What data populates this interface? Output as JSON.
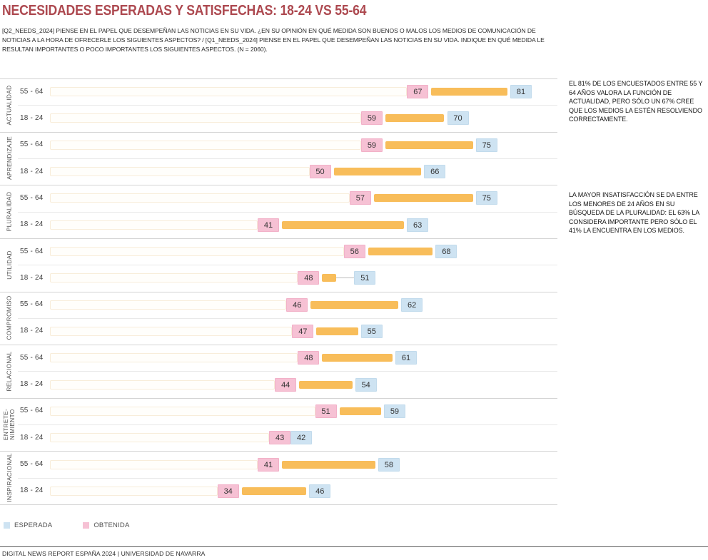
{
  "title": "NECESIDADES ESPERADAS Y SATISFECHAS: 18-24 VS 55-64",
  "question": "[Q2_NEEDS_2024] PIENSE EN EL PAPEL QUE DESEMPEÑAN LAS NOTICIAS EN SU VIDA. ¿EN SU OPINIÓN EN QUÉ MEDIDA SON BUENOS O MALOS LOS MEDIOS DE COMUNICACIÓN DE NOTICIAS A LA HORA DE OFRECERLE LOS SIGUIENTES ASPECTOS? / [Q1_NEEDS_2024] PIENSE EN EL PAPEL QUE DESEMPEÑAN LAS NOTICIAS EN SU VIDA. INDIQUE EN QUÉ MEDIDA LE RESULTAN IMPORTANTES O POCO IMPORTANTES LOS SIGUIENTES ASPECTOS. (N = 2060).",
  "chart_data": {
    "type": "bar",
    "subtype": "dumbbell-gap",
    "xlim": [
      0,
      100
    ],
    "row_labels": [
      "55 - 64",
      "18 - 24"
    ],
    "colors": {
      "obtenida_fill": "#f6c1d4",
      "obtenida_border": "#f2b1c8",
      "esperada_fill": "#cee3f2",
      "esperada_border": "#c2dbec",
      "gap_bar": "#f8bd5a",
      "title_red": "#ad4950"
    },
    "series_legend": [
      {
        "name": "ESPERADA",
        "color": "#cee3f2"
      },
      {
        "name": "OBTENIDA",
        "color": "#f6c1d4"
      }
    ],
    "categories": [
      {
        "label": "ACTUALIDAD",
        "label_lines": [
          "ACTUALIDAD"
        ],
        "rows": [
          {
            "group": "55 - 64",
            "obtenida": 67,
            "esperada": 81
          },
          {
            "group": "18 - 24",
            "obtenida": 59,
            "esperada": 70
          }
        ]
      },
      {
        "label": "APRENDIZAJE",
        "label_lines": [
          "APRENDIZAJE"
        ],
        "rows": [
          {
            "group": "55 - 64",
            "obtenida": 59,
            "esperada": 75
          },
          {
            "group": "18 - 24",
            "obtenida": 50,
            "esperada": 66
          }
        ]
      },
      {
        "label": "PLURALIDAD",
        "label_lines": [
          "PLURALIDAD"
        ],
        "rows": [
          {
            "group": "55 - 64",
            "obtenida": 57,
            "esperada": 75
          },
          {
            "group": "18 - 24",
            "obtenida": 41,
            "esperada": 63
          }
        ]
      },
      {
        "label": "UTILIDAD",
        "label_lines": [
          "UTILIDAD"
        ],
        "rows": [
          {
            "group": "55 - 64",
            "obtenida": 56,
            "esperada": 68
          },
          {
            "group": "18 - 24",
            "obtenida": 48,
            "esperada": 51
          }
        ]
      },
      {
        "label": "COMPROMISO",
        "label_lines": [
          "COMPROMISO"
        ],
        "rows": [
          {
            "group": "55 - 64",
            "obtenida": 46,
            "esperada": 62
          },
          {
            "group": "18 - 24",
            "obtenida": 47,
            "esperada": 55
          }
        ]
      },
      {
        "label": "RELACIONAL",
        "label_lines": [
          "RELACIONAL"
        ],
        "rows": [
          {
            "group": "55 - 64",
            "obtenida": 48,
            "esperada": 61
          },
          {
            "group": "18 - 24",
            "obtenida": 44,
            "esperada": 54
          }
        ]
      },
      {
        "label": "ENTRETENIMIENTO",
        "label_lines": [
          "ENTRETE-",
          "NIMIENTO"
        ],
        "rows": [
          {
            "group": "55 - 64",
            "obtenida": 51,
            "esperada": 59
          },
          {
            "group": "18 - 24",
            "obtenida": 43,
            "esperada": 42
          }
        ]
      },
      {
        "label": "INSPIRACIONAL",
        "label_lines": [
          "INSPIRACIONAL"
        ],
        "rows": [
          {
            "group": "55 - 64",
            "obtenida": 41,
            "esperada": 58
          },
          {
            "group": "18 - 24",
            "obtenida": 34,
            "esperada": 46
          }
        ]
      }
    ]
  },
  "annotations": [
    {
      "text": "EL 81% DE LOS ENCUESTADOS ENTRE 55 Y 64 AÑOS VALORA LA FUNCIÓN DE ACTUALIDAD, PERO SÓLO UN 67% CREE QUE LOS MEDIOS LA ESTÉN RESOLVIENDO CORRECTAMENTE."
    },
    {
      "text": "LA MAYOR INSATISFACCIÓN SE DA ENTRE LOS MENORES DE 24 AÑOS EN SU BÚSQUEDA DE LA PLURALIDAD: EL 63% LA CONSIDERA IMPORTANTE PERO SÓLO EL 41% LA ENCUENTRA EN LOS MEDIOS."
    }
  ],
  "legend": [
    {
      "label": "ESPERADA"
    },
    {
      "label": "OBTENIDA"
    }
  ],
  "footer": "DIGITAL NEWS REPORT ESPAÑA 2024 | UNIVERSIDAD DE NAVARRA"
}
